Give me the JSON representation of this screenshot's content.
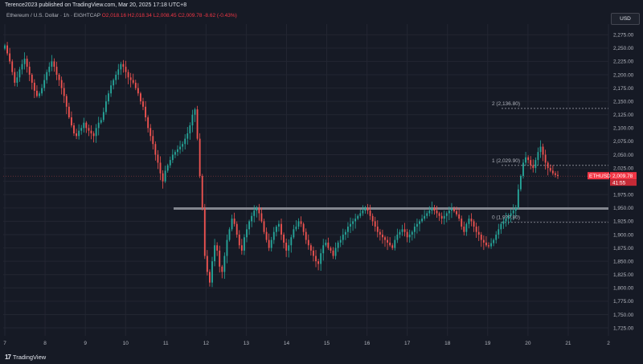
{
  "header": {
    "publisher": "Terence2023 published on TradingView.com, Mar 20, 2025 17:18 UTC+8"
  },
  "symbol_info": {
    "name": "Ethereum / U.S. Dollar · 1h · EIGHTCAP",
    "open": "O2,018.16",
    "high": "H2,018.34",
    "low": "L2,008.45",
    "close": "C2,009.78",
    "change": "-8.62 (-0.43%)"
  },
  "currency_button": "USD",
  "price_tag": {
    "symbol": "ETHUSD",
    "price": "2,009.78",
    "countdown": "41:55"
  },
  "fib_labels": {
    "level2": "2 (2,136.80)",
    "level1": "1 (2,029.90)",
    "level0": "0 (1,9??.80)"
  },
  "footer": {
    "brand": "TradingView"
  },
  "colors": {
    "up": "#26a69a",
    "down": "#ef5350",
    "background": "#161a25",
    "grid": "#232632",
    "price_tag": "#f23645",
    "level_line": "#9598a1"
  },
  "chart_data": {
    "type": "candlestick",
    "y_axis_ticks": [
      "2,275.00",
      "2,250.00",
      "2,225.00",
      "2,200.00",
      "2,175.00",
      "2,150.00",
      "2,125.00",
      "2,100.00",
      "2,075.00",
      "2,050.00",
      "2,025.00",
      "2,000.00",
      "1,975.00",
      "1,950.00",
      "1,925.00",
      "1,900.00",
      "1,875.00",
      "1,850.00",
      "1,825.00",
      "1,800.00",
      "1,775.00",
      "1,750.00",
      "1,725.00"
    ],
    "x_axis_ticks": [
      "7",
      "8",
      "9",
      "10",
      "11",
      "12",
      "13",
      "14",
      "15",
      "16",
      "17",
      "18",
      "19",
      "20",
      "21",
      "2"
    ],
    "ylim": [
      1710,
      2295
    ],
    "support_level": 1949,
    "fib_levels": [
      {
        "label": "2",
        "value": 2136.8
      },
      {
        "label": "1",
        "value": 2029.9
      },
      {
        "label": "0",
        "value": 1923
      }
    ],
    "last_price": 2009.78,
    "closes": [
      2255,
      2240,
      2225,
      2205,
      2185,
      2195,
      2210,
      2220,
      2230,
      2215,
      2200,
      2185,
      2170,
      2160,
      2165,
      2175,
      2190,
      2205,
      2215,
      2225,
      2215,
      2200,
      2190,
      2175,
      2160,
      2140,
      2120,
      2105,
      2090,
      2085,
      2095,
      2100,
      2110,
      2100,
      2095,
      2090,
      2085,
      2100,
      2110,
      2115,
      2130,
      2150,
      2165,
      2180,
      2190,
      2200,
      2210,
      2220,
      2215,
      2205,
      2195,
      2190,
      2185,
      2175,
      2165,
      2150,
      2140,
      2120,
      2100,
      2085,
      2070,
      2050,
      2035,
      2015,
      2000,
      2020,
      2030,
      2040,
      2050,
      2055,
      2060,
      2065,
      2070,
      2080,
      2090,
      2105,
      2125,
      2135,
      2080,
      2010,
      1950,
      1860,
      1830,
      1810,
      1850,
      1880,
      1870,
      1840,
      1830,
      1860,
      1890,
      1910,
      1930,
      1920,
      1900,
      1880,
      1870,
      1895,
      1910,
      1925,
      1935,
      1945,
      1950,
      1940,
      1925,
      1905,
      1890,
      1875,
      1890,
      1905,
      1915,
      1920,
      1900,
      1885,
      1870,
      1880,
      1895,
      1910,
      1915,
      1925,
      1920,
      1905,
      1890,
      1880,
      1870,
      1860,
      1850,
      1845,
      1865,
      1880,
      1885,
      1875,
      1870,
      1860,
      1875,
      1885,
      1890,
      1900,
      1905,
      1915,
      1920,
      1925,
      1930,
      1935,
      1940,
      1945,
      1950,
      1945,
      1935,
      1925,
      1915,
      1905,
      1900,
      1895,
      1890,
      1885,
      1880,
      1875,
      1890,
      1900,
      1905,
      1910,
      1905,
      1895,
      1900,
      1905,
      1915,
      1920,
      1925,
      1930,
      1935,
      1940,
      1945,
      1950,
      1945,
      1940,
      1935,
      1930,
      1935,
      1940,
      1945,
      1948,
      1944,
      1938,
      1930,
      1915,
      1905,
      1920,
      1930,
      1925,
      1915,
      1905,
      1900,
      1890,
      1885,
      1880,
      1878,
      1884,
      1890,
      1900,
      1910,
      1920,
      1925,
      1930,
      1935,
      1940,
      1945,
      1950,
      1985,
      2010,
      2035,
      2045,
      2040,
      2030,
      2025,
      2040,
      2055,
      2065,
      2050,
      2035,
      2025,
      2020,
      2015,
      2012,
      2010
    ]
  }
}
